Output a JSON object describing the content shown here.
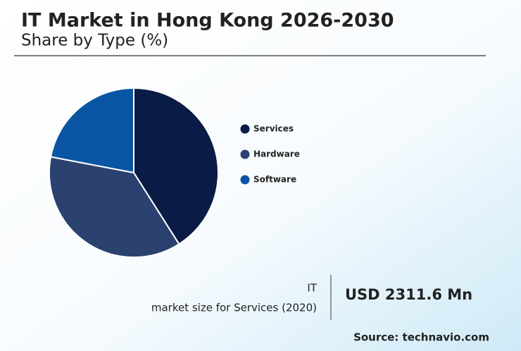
{
  "chart_data": {
    "type": "pie",
    "title": "IT Market in Hong Kong 2026-2030",
    "subtitle": "Share by Type (%)",
    "categories": [
      "Services",
      "Hardware",
      "Software"
    ],
    "values": [
      41,
      37,
      22
    ],
    "colors": [
      "#0a1c45",
      "#2b4170",
      "#0a55a3"
    ]
  },
  "info": {
    "label_line1": "IT",
    "label_line2": "market size for Services (2020)",
    "value": "USD 2311.6 Mn",
    "source": "Source: technavio.com"
  }
}
